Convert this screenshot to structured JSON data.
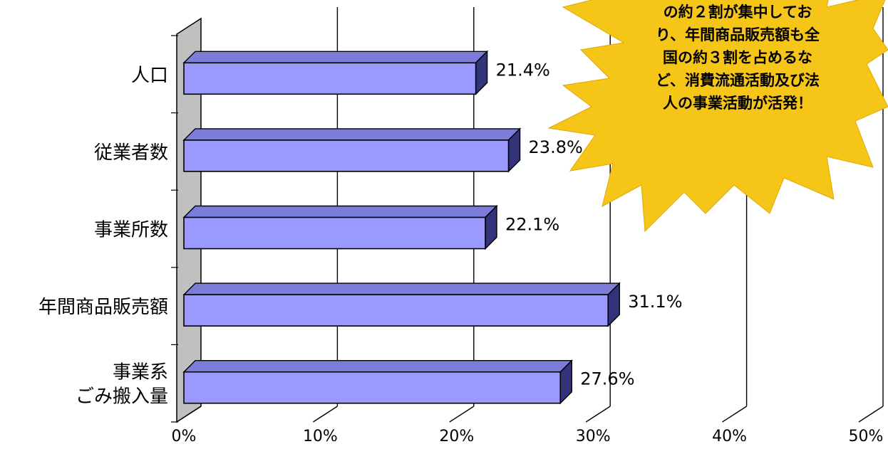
{
  "chart_data": {
    "type": "bar",
    "orientation": "horizontal",
    "categories": [
      "人口",
      "従業者数",
      "事業所数",
      "年間商品販売額",
      "事業系\nごみ搬入量"
    ],
    "values": [
      21.4,
      23.8,
      22.1,
      31.1,
      27.6
    ],
    "value_labels": [
      "21.4%",
      "23.8%",
      "22.1%",
      "31.1%",
      "27.6%"
    ],
    "x_ticks": [
      "0%",
      "10%",
      "20%",
      "30%",
      "40%",
      "50%"
    ],
    "xlim": [
      0,
      50
    ],
    "grid": true,
    "three_d": true,
    "colors": {
      "bar_front": "#9999ff",
      "bar_top": "#7c7cd9",
      "bar_side": "#33337a",
      "back_wall": "#c0c0c0",
      "callout": "#f5c518"
    }
  },
  "callout": {
    "lines": [
      "の約２割が集中してお",
      "り、年間商品販売額も全",
      "国の約３割を占めるな",
      "ど、消費流通活動及び法",
      "人の事業活動が活発！"
    ]
  }
}
